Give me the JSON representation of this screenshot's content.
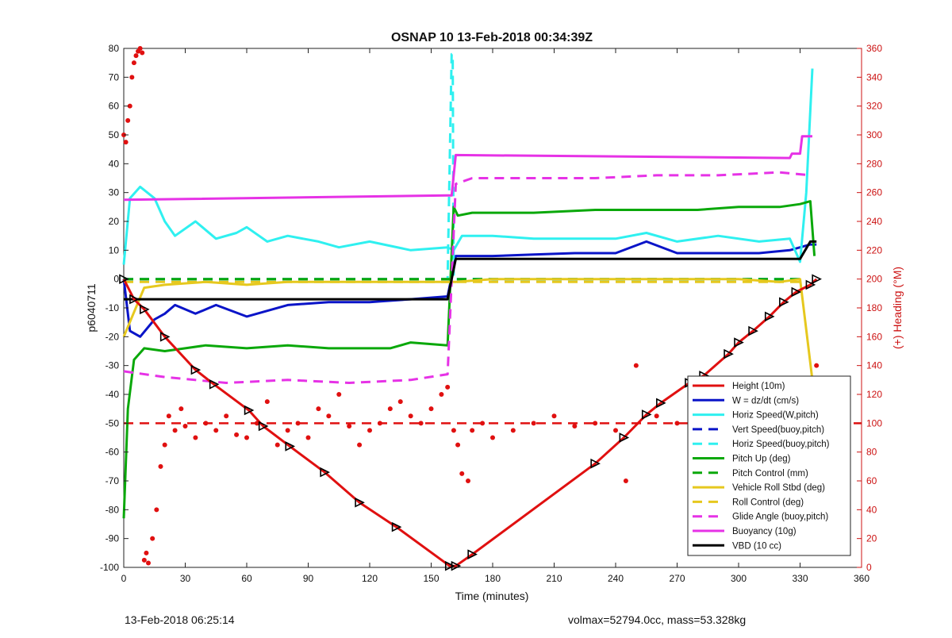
{
  "chart_data": {
    "type": "line",
    "title": "OSNAP 10 13-Feb-2018 00:34:39Z",
    "xlabel": "Time (minutes)",
    "ylabel": "p6040711",
    "y2label": "(+) Heading (°M)",
    "xlim": [
      0,
      360
    ],
    "ylim": [
      -100,
      80
    ],
    "y2lim": [
      0,
      360
    ],
    "xticks": [
      0,
      30,
      60,
      90,
      120,
      150,
      180,
      210,
      240,
      270,
      300,
      330,
      360
    ],
    "yticks": [
      -100,
      -90,
      -80,
      -70,
      -60,
      -50,
      -40,
      -30,
      -20,
      -10,
      0,
      10,
      20,
      30,
      40,
      50,
      60,
      70,
      80
    ],
    "y2ticks": [
      0,
      20,
      40,
      60,
      80,
      100,
      120,
      140,
      160,
      180,
      200,
      220,
      240,
      260,
      280,
      300,
      320,
      340,
      360
    ],
    "grid": false,
    "legend_position": "bottom-right",
    "colors": {
      "height": "#e01010",
      "w": "#0a14c8",
      "horiz_speed": "#2ff0f0",
      "pitch_up": "#0aa80a",
      "vehicle_roll": "#e6c81e",
      "glide_angle": "#e632e6",
      "buoyancy": "#e632e6",
      "vbd": "#000000",
      "heading": "#e01010",
      "axis_right": "#cc1111"
    },
    "series": [
      {
        "name": "Height (10m)",
        "style": "solid",
        "color": "#e01010",
        "x": [
          0,
          5,
          10,
          20,
          35,
          44,
          61,
          68,
          81,
          98,
          115,
          133,
          159,
          162,
          170,
          230,
          244,
          255,
          262,
          276,
          283,
          295,
          300,
          307,
          315,
          322,
          328,
          335,
          338
        ],
        "y": [
          0,
          -7,
          -10.5,
          -20,
          -31.5,
          -36.5,
          -45.5,
          -51,
          -58,
          -67,
          -77.5,
          -86,
          -99.5,
          -99.5,
          -95.5,
          -64,
          -55,
          -47,
          -43,
          -36,
          -33.5,
          -26,
          -22,
          -18,
          -13,
          -8,
          -4.5,
          -2,
          0
        ]
      },
      {
        "name": "W = dz/dt (cm/s)",
        "style": "solid",
        "color": "#0a14c8",
        "x": [
          0,
          3,
          8,
          15,
          20,
          25,
          35,
          45,
          60,
          80,
          100,
          120,
          140,
          158,
          162,
          165,
          180,
          200,
          220,
          240,
          255,
          270,
          290,
          310,
          325,
          335,
          338
        ],
        "y": [
          0,
          -18,
          -20,
          -14,
          -12,
          -9,
          -12,
          -9,
          -13,
          -9,
          -8,
          -8,
          -7,
          -6,
          8,
          8,
          8,
          8.5,
          9,
          9,
          13,
          9,
          9,
          9,
          10,
          12,
          12
        ]
      },
      {
        "name": "Horiz Speed(W,pitch)",
        "style": "solid",
        "color": "#2ff0f0",
        "x": [
          0,
          3,
          8,
          15,
          20,
          25,
          35,
          45,
          55,
          60,
          70,
          80,
          95,
          105,
          120,
          140,
          158,
          161,
          165,
          180,
          200,
          220,
          240,
          255,
          270,
          290,
          310,
          325,
          330,
          333,
          336
        ],
        "y": [
          5,
          28,
          32,
          28,
          20,
          15,
          20,
          14,
          16,
          18,
          13,
          15,
          13,
          11,
          13,
          10,
          11,
          10,
          15,
          15,
          14,
          14,
          14,
          16,
          13,
          15,
          13,
          14,
          6,
          30,
          73
        ]
      },
      {
        "name": "Vert Speed(buoy,pitch)",
        "style": "dashed",
        "color": "#0a14c8",
        "x": [
          0,
          330
        ],
        "y": [
          0,
          0
        ]
      },
      {
        "name": "Horiz Speed(buoy,pitch)",
        "style": "dashed",
        "color": "#2ff0f0",
        "x": [
          0,
          158,
          160,
          160.5,
          161,
          330
        ],
        "y": [
          0,
          0,
          78,
          78,
          0,
          0
        ]
      },
      {
        "name": "Pitch Up (deg)",
        "style": "solid",
        "color": "#0aa80a",
        "x": [
          0,
          2,
          5,
          10,
          20,
          30,
          40,
          60,
          80,
          100,
          130,
          140,
          158,
          161,
          163,
          170,
          200,
          230,
          260,
          280,
          300,
          320,
          330,
          335,
          337
        ],
        "y": [
          -83,
          -45,
          -28,
          -24,
          -25,
          -24,
          -23,
          -24,
          -23,
          -24,
          -24,
          -22,
          -23,
          25,
          22,
          23,
          23,
          24,
          24,
          24,
          25,
          25,
          26,
          27,
          8
        ]
      },
      {
        "name": "Pitch Control (mm)",
        "style": "dashed",
        "color": "#0aa80a",
        "x": [
          0,
          330
        ],
        "y": [
          0,
          0
        ]
      },
      {
        "name": "Vehicle Roll Stbd (deg)",
        "style": "solid",
        "color": "#e6c81e",
        "x": [
          0,
          10,
          20,
          40,
          60,
          80,
          100,
          120,
          158,
          162,
          180,
          220,
          260,
          300,
          320,
          330,
          336
        ],
        "y": [
          -20,
          -3,
          -2,
          -1,
          -2,
          -1,
          -1,
          -1,
          -1,
          -1,
          0,
          0,
          0,
          0,
          -1,
          0,
          -35
        ]
      },
      {
        "name": "Roll Control (deg)",
        "style": "dashed",
        "color": "#e6c81e",
        "x": [
          0,
          330
        ],
        "y": [
          -1,
          -1
        ]
      },
      {
        "name": "Glide Angle (buoy,pitch)",
        "style": "dashed",
        "color": "#e632e6",
        "x": [
          0,
          20,
          50,
          80,
          110,
          140,
          158,
          162,
          170,
          200,
          230,
          260,
          290,
          320,
          335
        ],
        "y": [
          -32,
          -34,
          -36,
          -35,
          -36,
          -35,
          -33,
          33,
          35,
          35,
          35,
          36,
          36,
          37,
          36
        ]
      },
      {
        "name": "Buoyancy (10g)",
        "style": "solid",
        "color": "#e632e6",
        "x": [
          0,
          158,
          160,
          162,
          325,
          326,
          330,
          331,
          336
        ],
        "y": [
          27.5,
          29,
          29,
          43,
          42,
          43.5,
          43.5,
          49.5,
          49.5
        ]
      },
      {
        "name": "VBD (10 cc)",
        "style": "solid",
        "color": "#000000",
        "x": [
          0,
          158,
          162,
          165,
          325,
          330,
          335,
          338
        ],
        "y": [
          -7,
          -7,
          7,
          7,
          7,
          7,
          13,
          13
        ]
      }
    ],
    "heading": {
      "axis": "right",
      "style": "dots",
      "color": "#e01010",
      "reference_line": 100,
      "x": [
        0,
        1,
        2,
        3,
        4,
        5,
        6,
        7,
        8,
        9,
        10,
        11,
        12,
        14,
        16,
        18,
        20,
        22,
        25,
        28,
        30,
        35,
        40,
        45,
        50,
        55,
        60,
        65,
        70,
        75,
        80,
        85,
        90,
        95,
        100,
        105,
        110,
        115,
        120,
        125,
        130,
        135,
        140,
        145,
        150,
        155,
        158,
        161,
        163,
        165,
        168,
        170,
        175,
        180,
        190,
        200,
        210,
        220,
        230,
        240,
        245,
        250,
        260,
        270,
        280,
        290,
        300,
        310,
        315,
        320,
        325,
        330,
        335,
        338
      ],
      "y": [
        300,
        295,
        310,
        320,
        340,
        350,
        355,
        358,
        360,
        357,
        5,
        10,
        3,
        20,
        40,
        70,
        85,
        105,
        95,
        110,
        98,
        90,
        100,
        95,
        105,
        92,
        90,
        100,
        115,
        85,
        95,
        100,
        90,
        110,
        105,
        120,
        98,
        85,
        95,
        100,
        110,
        115,
        105,
        100,
        110,
        120,
        125,
        95,
        85,
        65,
        60,
        95,
        100,
        90,
        95,
        100,
        105,
        98,
        100,
        95,
        60,
        140,
        105,
        100,
        105,
        100,
        95,
        105,
        100,
        90,
        100,
        105,
        95,
        140
      ]
    },
    "legend": [
      "Height (10m)",
      "W = dz/dt (cm/s)",
      "Horiz Speed(W,pitch)",
      "Vert Speed(buoy,pitch)",
      "Horiz Speed(buoy,pitch)",
      "Pitch Up (deg)",
      "Pitch Control (mm)",
      "Vehicle Roll Stbd (deg)",
      "Roll Control (deg)",
      "Glide Angle (buoy,pitch)",
      "Buoyancy (10g)",
      "VBD (10 cc)"
    ]
  },
  "footer": {
    "left": "13-Feb-2018 06:25:14",
    "right": "volmax=52794.0cc, mass=53.328kg"
  }
}
